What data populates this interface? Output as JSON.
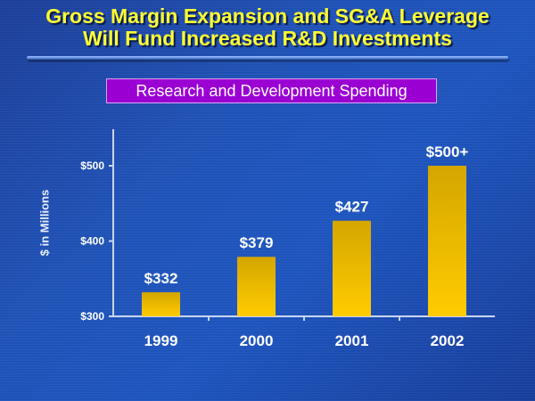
{
  "slide": {
    "title_line1": "Gross Margin Expansion and SG&A Leverage",
    "title_line2": "Will Fund Increased R&D Investments",
    "subtitle": "Research and Development Spending"
  },
  "colors": {
    "title_text": "#ffff33",
    "subtitle_bg": "#9b00d3",
    "bar_top": "#d4a600",
    "bar_bottom": "#ffcc00",
    "axis": "#c8d4f0",
    "label_text": "#ffffff"
  },
  "chart_data": {
    "type": "bar",
    "title": "Research and Development Spending",
    "xlabel": "",
    "ylabel": "$ in Millions",
    "categories": [
      "1999",
      "2000",
      "2001",
      "2002"
    ],
    "values": [
      332,
      379,
      427,
      500
    ],
    "data_labels": [
      "$332",
      "$379",
      "$427",
      "$500+"
    ],
    "ylim": [
      300,
      550
    ],
    "yticks": [
      300,
      400,
      500
    ],
    "ytick_labels": [
      "$300",
      "$400",
      "$500"
    ],
    "grid": false,
    "legend": "none"
  }
}
